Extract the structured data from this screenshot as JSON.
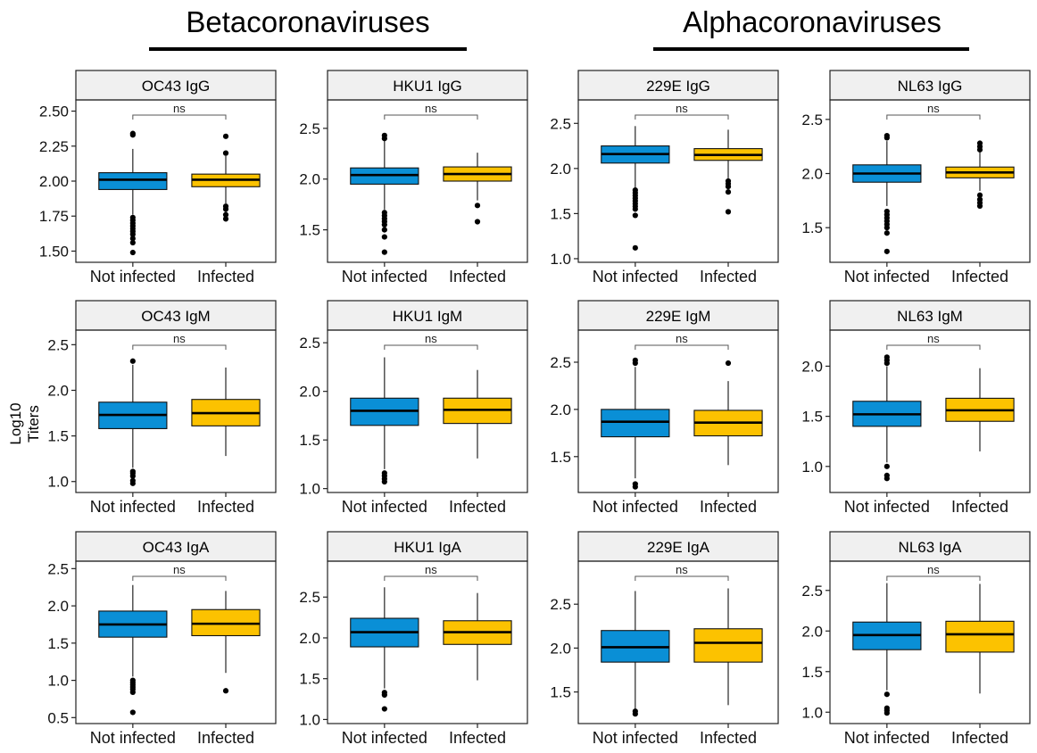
{
  "groups": [
    {
      "title": "Betacoronaviruses"
    },
    {
      "title": "Alphacoronaviruses"
    }
  ],
  "y_axis_label": "Log10 Titers",
  "colors": {
    "not_infected": "#0a8fd6",
    "infected": "#fcc200"
  },
  "chart_data": [
    {
      "type": "boxplot",
      "title": "OC43 IgG",
      "categories": [
        "Not infected",
        "Infected"
      ],
      "ylim": [
        1.42,
        2.58
      ],
      "yticks": [
        {
          "v": 1.5,
          "label": "1.50"
        },
        {
          "v": 1.75,
          "label": "1.75"
        },
        {
          "v": 2.0,
          "label": "2.00"
        },
        {
          "v": 2.25,
          "label": "2.25"
        },
        {
          "v": 2.5,
          "label": "2.50"
        }
      ],
      "significance": "ns",
      "boxes": [
        {
          "q1": 1.94,
          "median": 2.01,
          "q3": 2.06,
          "whisker_low": 1.76,
          "whisker_high": 2.23,
          "outliers": [
            1.49,
            1.56,
            1.59,
            1.62,
            1.64,
            1.66,
            1.68,
            1.7,
            1.72,
            1.74,
            2.33,
            2.34
          ]
        },
        {
          "q1": 1.96,
          "median": 2.01,
          "q3": 2.05,
          "whisker_low": 1.84,
          "whisker_high": 2.18,
          "outliers": [
            1.73,
            1.76,
            1.8,
            1.82,
            2.2,
            2.32
          ]
        }
      ]
    },
    {
      "type": "boxplot",
      "title": "HKU1 IgG",
      "categories": [
        "Not infected",
        "Infected"
      ],
      "ylim": [
        1.18,
        2.78
      ],
      "yticks": [
        {
          "v": 1.5,
          "label": "1.5"
        },
        {
          "v": 2.0,
          "label": "2.0"
        },
        {
          "v": 2.5,
          "label": "2.5"
        }
      ],
      "significance": "ns",
      "boxes": [
        {
          "q1": 1.95,
          "median": 2.04,
          "q3": 2.11,
          "whisker_low": 1.7,
          "whisker_high": 2.38,
          "outliers": [
            1.28,
            1.43,
            1.5,
            1.55,
            1.58,
            1.61,
            1.64,
            1.67,
            2.4,
            2.43
          ]
        },
        {
          "q1": 1.98,
          "median": 2.05,
          "q3": 2.12,
          "whisker_low": 1.79,
          "whisker_high": 2.26,
          "outliers": [
            1.58,
            1.74
          ]
        }
      ]
    },
    {
      "type": "boxplot",
      "title": "229E IgG",
      "categories": [
        "Not infected",
        "Infected"
      ],
      "ylim": [
        0.96,
        2.76
      ],
      "yticks": [
        {
          "v": 1.0,
          "label": "1.0"
        },
        {
          "v": 1.5,
          "label": "1.5"
        },
        {
          "v": 2.0,
          "label": "2.0"
        },
        {
          "v": 2.5,
          "label": "2.5"
        }
      ],
      "significance": "ns",
      "boxes": [
        {
          "q1": 2.06,
          "median": 2.16,
          "q3": 2.25,
          "whisker_low": 1.78,
          "whisker_high": 2.47,
          "outliers": [
            1.12,
            1.48,
            1.55,
            1.58,
            1.61,
            1.64,
            1.67,
            1.7,
            1.73,
            1.76
          ]
        },
        {
          "q1": 2.09,
          "median": 2.15,
          "q3": 2.22,
          "whisker_low": 1.89,
          "whisker_high": 2.43,
          "outliers": [
            1.52,
            1.74,
            1.8,
            1.83,
            1.86
          ]
        }
      ]
    },
    {
      "type": "boxplot",
      "title": "NL63 IgG",
      "categories": [
        "Not infected",
        "Infected"
      ],
      "ylim": [
        1.18,
        2.68
      ],
      "yticks": [
        {
          "v": 1.5,
          "label": "1.5"
        },
        {
          "v": 2.0,
          "label": "2.0"
        },
        {
          "v": 2.5,
          "label": "2.5"
        }
      ],
      "significance": "ns",
      "boxes": [
        {
          "q1": 1.92,
          "median": 2.0,
          "q3": 2.08,
          "whisker_low": 1.7,
          "whisker_high": 2.3,
          "outliers": [
            1.28,
            1.45,
            1.5,
            1.53,
            1.56,
            1.59,
            1.62,
            1.65,
            2.33,
            2.35
          ]
        },
        {
          "q1": 1.96,
          "median": 2.01,
          "q3": 2.06,
          "whisker_low": 1.84,
          "whisker_high": 2.2,
          "outliers": [
            1.7,
            1.73,
            1.76,
            1.8,
            2.22,
            2.25,
            2.28
          ]
        }
      ]
    },
    {
      "type": "boxplot",
      "title": "OC43 IgM",
      "categories": [
        "Not infected",
        "Infected"
      ],
      "ylim": [
        0.88,
        2.66
      ],
      "yticks": [
        {
          "v": 1.0,
          "label": "1.0"
        },
        {
          "v": 1.5,
          "label": "1.5"
        },
        {
          "v": 2.0,
          "label": "2.0"
        },
        {
          "v": 2.5,
          "label": "2.5"
        }
      ],
      "significance": "ns",
      "boxes": [
        {
          "q1": 1.58,
          "median": 1.73,
          "q3": 1.87,
          "whisker_low": 1.15,
          "whisker_high": 2.28,
          "outliers": [
            0.98,
            1.01,
            1.06,
            1.09,
            1.11,
            2.32
          ]
        },
        {
          "q1": 1.61,
          "median": 1.75,
          "q3": 1.9,
          "whisker_low": 1.28,
          "whisker_high": 2.25,
          "outliers": []
        }
      ]
    },
    {
      "type": "boxplot",
      "title": "HKU1 IgM",
      "categories": [
        "Not infected",
        "Infected"
      ],
      "ylim": [
        0.96,
        2.63
      ],
      "yticks": [
        {
          "v": 1.0,
          "label": "1.0"
        },
        {
          "v": 1.5,
          "label": "1.5"
        },
        {
          "v": 2.0,
          "label": "2.0"
        },
        {
          "v": 2.5,
          "label": "2.5"
        }
      ],
      "significance": "ns",
      "boxes": [
        {
          "q1": 1.65,
          "median": 1.8,
          "q3": 1.93,
          "whisker_low": 1.2,
          "whisker_high": 2.35,
          "outliers": [
            1.07,
            1.1,
            1.13,
            1.16
          ]
        },
        {
          "q1": 1.67,
          "median": 1.81,
          "q3": 1.93,
          "whisker_low": 1.31,
          "whisker_high": 2.22,
          "outliers": []
        }
      ]
    },
    {
      "type": "boxplot",
      "title": "229E IgM",
      "categories": [
        "Not infected",
        "Infected"
      ],
      "ylim": [
        1.12,
        2.84
      ],
      "yticks": [
        {
          "v": 1.5,
          "label": "1.5"
        },
        {
          "v": 2.0,
          "label": "2.0"
        },
        {
          "v": 2.5,
          "label": "2.5"
        }
      ],
      "significance": "ns",
      "boxes": [
        {
          "q1": 1.71,
          "median": 1.87,
          "q3": 2.0,
          "whisker_low": 1.27,
          "whisker_high": 2.45,
          "outliers": [
            1.18,
            1.21,
            2.49,
            2.52
          ]
        },
        {
          "q1": 1.72,
          "median": 1.86,
          "q3": 1.99,
          "whisker_low": 1.41,
          "whisker_high": 2.3,
          "outliers": [
            2.49
          ]
        }
      ]
    },
    {
      "type": "boxplot",
      "title": "NL63 IgM",
      "categories": [
        "Not infected",
        "Infected"
      ],
      "ylim": [
        0.74,
        2.36
      ],
      "yticks": [
        {
          "v": 1.0,
          "label": "1.0"
        },
        {
          "v": 1.5,
          "label": "1.5"
        },
        {
          "v": 2.0,
          "label": "2.0"
        }
      ],
      "significance": "ns",
      "boxes": [
        {
          "q1": 1.4,
          "median": 1.52,
          "q3": 1.65,
          "whisker_low": 1.04,
          "whisker_high": 2.0,
          "outliers": [
            0.88,
            0.91,
            1.0,
            2.03,
            2.06,
            2.09
          ]
        },
        {
          "q1": 1.45,
          "median": 1.56,
          "q3": 1.68,
          "whisker_low": 1.15,
          "whisker_high": 1.98,
          "outliers": []
        }
      ]
    },
    {
      "type": "boxplot",
      "title": "OC43 IgA",
      "categories": [
        "Not infected",
        "Infected"
      ],
      "ylim": [
        0.42,
        2.6
      ],
      "yticks": [
        {
          "v": 0.5,
          "label": "0.5"
        },
        {
          "v": 1.0,
          "label": "1.0"
        },
        {
          "v": 1.5,
          "label": "1.5"
        },
        {
          "v": 2.0,
          "label": "2.0"
        },
        {
          "v": 2.5,
          "label": "2.5"
        }
      ],
      "significance": "ns",
      "boxes": [
        {
          "q1": 1.58,
          "median": 1.75,
          "q3": 1.93,
          "whisker_low": 1.05,
          "whisker_high": 2.28,
          "outliers": [
            0.57,
            0.84,
            0.88,
            0.91,
            0.94,
            0.97,
            1.0
          ]
        },
        {
          "q1": 1.6,
          "median": 1.76,
          "q3": 1.95,
          "whisker_low": 1.1,
          "whisker_high": 2.2,
          "outliers": [
            0.86
          ]
        }
      ]
    },
    {
      "type": "boxplot",
      "title": "HKU1 IgA",
      "categories": [
        "Not infected",
        "Infected"
      ],
      "ylim": [
        0.95,
        2.94
      ],
      "yticks": [
        {
          "v": 1.0,
          "label": "1.0"
        },
        {
          "v": 1.5,
          "label": "1.5"
        },
        {
          "v": 2.0,
          "label": "2.0"
        },
        {
          "v": 2.5,
          "label": "2.5"
        }
      ],
      "significance": "ns",
      "boxes": [
        {
          "q1": 1.89,
          "median": 2.07,
          "q3": 2.24,
          "whisker_low": 1.38,
          "whisker_high": 2.62,
          "outliers": [
            1.13,
            1.3,
            1.33
          ]
        },
        {
          "q1": 1.92,
          "median": 2.07,
          "q3": 2.21,
          "whisker_low": 1.48,
          "whisker_high": 2.55,
          "outliers": []
        }
      ]
    },
    {
      "type": "boxplot",
      "title": "229E IgA",
      "categories": [
        "Not infected",
        "Infected"
      ],
      "ylim": [
        1.14,
        2.99
      ],
      "yticks": [
        {
          "v": 1.5,
          "label": "1.5"
        },
        {
          "v": 2.0,
          "label": "2.0"
        },
        {
          "v": 2.5,
          "label": "2.5"
        }
      ],
      "significance": "ns",
      "boxes": [
        {
          "q1": 1.84,
          "median": 2.01,
          "q3": 2.2,
          "whisker_low": 1.3,
          "whisker_high": 2.65,
          "outliers": [
            1.25,
            1.28
          ]
        },
        {
          "q1": 1.84,
          "median": 2.06,
          "q3": 2.22,
          "whisker_low": 1.35,
          "whisker_high": 2.68,
          "outliers": []
        }
      ]
    },
    {
      "type": "boxplot",
      "title": "NL63 IgA",
      "categories": [
        "Not infected",
        "Infected"
      ],
      "ylim": [
        0.86,
        2.86
      ],
      "yticks": [
        {
          "v": 1.0,
          "label": "1.0"
        },
        {
          "v": 1.5,
          "label": "1.5"
        },
        {
          "v": 2.0,
          "label": "2.0"
        },
        {
          "v": 2.5,
          "label": "2.5"
        }
      ],
      "significance": "ns",
      "boxes": [
        {
          "q1": 1.77,
          "median": 1.95,
          "q3": 2.11,
          "whisker_low": 1.27,
          "whisker_high": 2.59,
          "outliers": [
            0.99,
            1.02,
            1.05,
            1.22
          ]
        },
        {
          "q1": 1.74,
          "median": 1.96,
          "q3": 2.12,
          "whisker_low": 1.23,
          "whisker_high": 2.58,
          "outliers": []
        }
      ]
    }
  ]
}
